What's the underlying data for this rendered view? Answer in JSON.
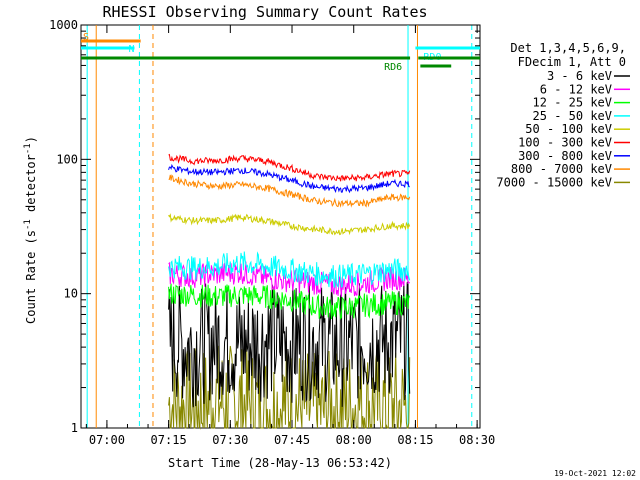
{
  "chart_data": {
    "type": "line",
    "title": "RHESSI Observing Summary Count Rates",
    "xlabel": "Start Time (28-May-13 06:53:42)",
    "ylabel_main": "Count Rate (s",
    "ylabel_sup1": "-1",
    "ylabel_mid": " detector",
    "ylabel_sup2": "-1",
    "ylabel_end": ")",
    "yscale": "log",
    "ylim": [
      1,
      1000
    ],
    "xlim_minutes": [
      0,
      97
    ],
    "x_ticks": [
      {
        "label": "07:00",
        "minute": 6.3
      },
      {
        "label": "07:15",
        "minute": 21.3
      },
      {
        "label": "07:30",
        "minute": 36.3
      },
      {
        "label": "07:45",
        "minute": 51.3
      },
      {
        "label": "08:00",
        "minute": 66.3
      },
      {
        "label": "08:15",
        "minute": 81.3
      },
      {
        "label": "08:30",
        "minute": 96.3
      }
    ],
    "y_ticks": [
      {
        "label": "1",
        "value": 1
      },
      {
        "label": "10",
        "value": 10
      },
      {
        "label": "100",
        "value": 100
      },
      {
        "label": "1000",
        "value": 1000
      }
    ],
    "legend": {
      "header": [
        "Det 1,3,4,5,6,9,",
        "FDecim 1, Att 0"
      ],
      "placement": "right"
    },
    "series": [
      {
        "name": "3 - 6 keV",
        "color": "#000000",
        "values": [
          4.5,
          4.0,
          4.5,
          4.2,
          4.5,
          4.3,
          4.5,
          4.0,
          4.4,
          4.5
        ]
      },
      {
        "name": "6 - 12 keV",
        "color": "#ff00ff",
        "values": [
          14.0,
          13.5,
          14.0,
          14.5,
          13.0,
          12.5,
          12.0,
          11.5,
          12.0,
          13.0
        ]
      },
      {
        "name": "12 - 25 keV",
        "color": "#00ff00",
        "values": [
          10.0,
          9.8,
          9.5,
          9.8,
          9.5,
          9.0,
          8.0,
          7.8,
          8.2,
          8.5
        ]
      },
      {
        "name": "25 - 50 keV",
        "color": "#00ffff",
        "values": [
          16.0,
          15.5,
          16.0,
          17.0,
          16.0,
          15.0,
          14.0,
          13.5,
          14.0,
          15.0
        ]
      },
      {
        "name": "50 - 100 keV",
        "color": "#cccc00",
        "values": [
          37.0,
          35.0,
          35.0,
          37.0,
          35.0,
          32.0,
          30.0,
          29.0,
          30.0,
          32.0
        ]
      },
      {
        "name": "100 - 300 keV",
        "color": "#ff0000",
        "values": [
          104.0,
          97.0,
          98.0,
          102.0,
          97.0,
          86.0,
          75.0,
          72.0,
          73.0,
          78.0
        ]
      },
      {
        "name": "300 - 800 keV",
        "color": "#0000ff",
        "values": [
          87.0,
          81.0,
          80.0,
          83.0,
          78.0,
          70.0,
          62.0,
          60.0,
          61.0,
          66.0
        ]
      },
      {
        "name": "800 - 7000 keV",
        "color": "#ff8800",
        "values": [
          73.0,
          66.0,
          63.0,
          65.0,
          61.0,
          55.0,
          49.0,
          47.0,
          47.0,
          52.0
        ]
      },
      {
        "name": "7000 - 15000 keV",
        "color": "#888800",
        "values": [
          1.5,
          1.4,
          1.6,
          1.5,
          1.4,
          1.5,
          1.3,
          1.4,
          1.5,
          1.4
        ]
      }
    ],
    "data_x_minutes": [
      21.3,
      27,
      33,
      39,
      45,
      51,
      57,
      63,
      69,
      75
    ],
    "segments": [
      {
        "label": "S",
        "color": "#ff8800",
        "level": "top",
        "x_minutes": [
          0,
          14.5
        ]
      },
      {
        "label": "N",
        "color": "#00ffff",
        "level": "upper",
        "x_minutes": [
          0,
          13.0
        ]
      },
      {
        "label": "RD0",
        "color": "#00ffff",
        "level": "upper",
        "x_minutes": [
          81.3,
          97
        ]
      },
      {
        "label": "RD6",
        "color": "#008800",
        "level": "lower",
        "x_minutes": [
          0,
          80.0
        ]
      },
      {
        "label": "",
        "color": "#008800",
        "level": "lower",
        "x_minutes": [
          82.0,
          97
        ]
      }
    ],
    "vertical_markers": [
      {
        "color": "#00ffff",
        "style": "solid",
        "minute": 1.5
      },
      {
        "color": "#ff8800",
        "style": "solid",
        "minute": 3.7
      },
      {
        "color": "#00ffff",
        "style": "dashed",
        "minute": 14.2
      },
      {
        "color": "#ff8800",
        "style": "dashed",
        "minute": 17.5
      },
      {
        "color": "#00ffff",
        "style": "solid",
        "minute": 79.5
      },
      {
        "color": "#ff8800",
        "style": "solid",
        "minute": 81.8
      },
      {
        "color": "#00ffff",
        "style": "dashed",
        "minute": 95.0
      }
    ],
    "footer": "19-Oct-2021 12:02"
  }
}
